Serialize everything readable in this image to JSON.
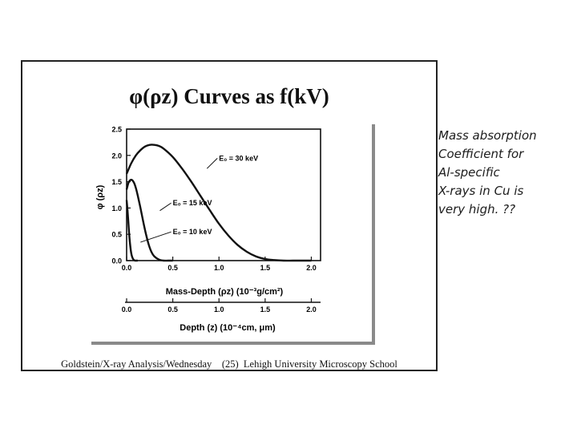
{
  "slide": {
    "title": "φ(ρz) Curves as f(kV)",
    "footer_left": "Goldstein/X-ray Analysis/Wednesday",
    "footer_page": "(25)",
    "footer_right": "Lehigh University Microscopy School"
  },
  "handwritten_note": [
    "Mass absorption",
    "Coefficient for",
    "Al-specific",
    "X-rays in Cu is",
    "very high. ??"
  ],
  "chart_data": {
    "type": "line",
    "xlabel": "Mass-Depth (ρz) (10⁻³g/cm²)",
    "ylabel": "φ (ρz)",
    "xlim": [
      0,
      2.1
    ],
    "ylim": [
      0,
      2.5
    ],
    "x_ticks": [
      "0.0",
      "0.5",
      "1.0",
      "1.5",
      "2.0"
    ],
    "y_ticks": [
      "0.0",
      "0.5",
      "1.0",
      "1.5",
      "2.0",
      "2.5"
    ],
    "series": [
      {
        "name": "E₀ = 30 keV",
        "x": [
          0,
          0.05,
          0.1,
          0.15,
          0.2,
          0.25,
          0.3,
          0.35,
          0.4,
          0.5,
          0.6,
          0.7,
          0.8,
          0.9,
          1.0,
          1.1,
          1.2,
          1.3,
          1.4,
          1.5,
          1.6,
          1.7,
          1.8,
          1.9,
          2.0
        ],
        "y": [
          1.65,
          1.85,
          2.0,
          2.1,
          2.17,
          2.2,
          2.2,
          2.18,
          2.13,
          1.97,
          1.75,
          1.5,
          1.23,
          0.96,
          0.7,
          0.48,
          0.3,
          0.17,
          0.08,
          0.03,
          0.01,
          0.0,
          0.0,
          0.0,
          0.0
        ]
      },
      {
        "name": "E₀ = 15 keV",
        "x": [
          0,
          0.02,
          0.04,
          0.06,
          0.08,
          0.1,
          0.12,
          0.15,
          0.18,
          0.21,
          0.24,
          0.27,
          0.3,
          0.35,
          0.4,
          0.45,
          0.5
        ],
        "y": [
          1.35,
          1.48,
          1.53,
          1.53,
          1.48,
          1.38,
          1.24,
          1.0,
          0.74,
          0.5,
          0.3,
          0.16,
          0.08,
          0.02,
          0.0,
          0.0,
          0.0
        ]
      },
      {
        "name": "E₀ = 10 keV",
        "x": [
          0,
          0.01,
          0.02,
          0.03,
          0.04,
          0.05,
          0.06,
          0.07,
          0.08,
          0.09,
          0.1,
          0.12
        ],
        "y": [
          1.15,
          0.95,
          0.7,
          0.45,
          0.27,
          0.14,
          0.07,
          0.03,
          0.01,
          0.0,
          0.0,
          0.0
        ]
      }
    ],
    "series_labels": [
      "E₀ = 30 keV",
      "E₀ = 15 keV",
      "E₀ = 10 keV"
    ],
    "secondary_axis": {
      "label": "Depth (z) (10⁻⁴cm, μm)",
      "ticks": [
        "0.0",
        "0.5",
        "1.0",
        "1.5",
        "2.0"
      ]
    }
  }
}
